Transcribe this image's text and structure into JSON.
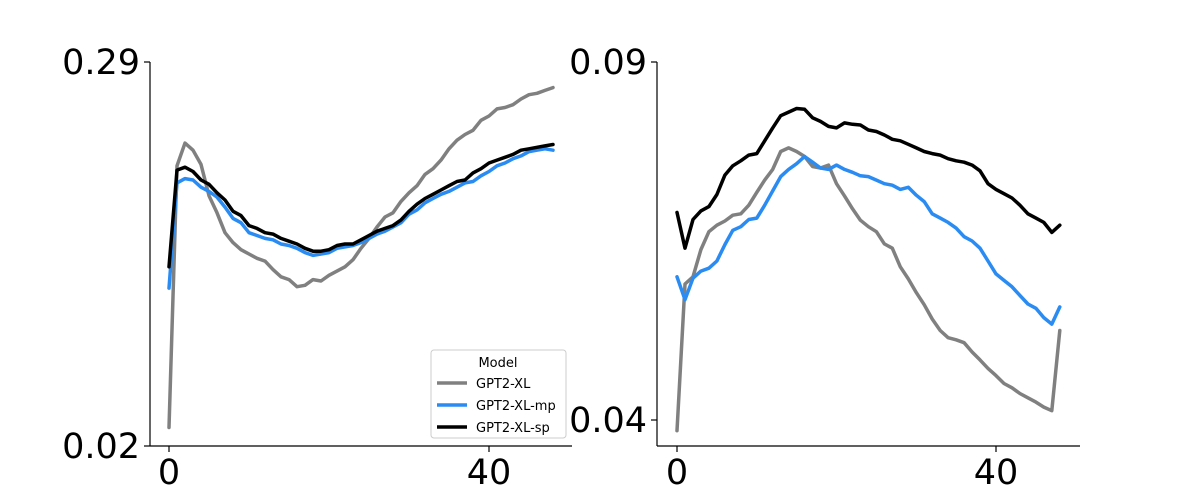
{
  "colors": {
    "GPT2-XL": "#808080",
    "GPT2-XL-mp": "#2a8cf2",
    "GPT2-XL-sp": "#000000"
  },
  "legend": {
    "title": "Model",
    "entries": [
      "GPT2-XL",
      "GPT2-XL-mp",
      "GPT2-XL-sp"
    ],
    "placement": "lower-right of left panel"
  },
  "chart_data": [
    {
      "type": "line",
      "title": "",
      "xlabel": "",
      "ylabel": "",
      "xlim": [
        -1,
        50
      ],
      "ylim": [
        0.02,
        0.29
      ],
      "xticks": [
        0,
        40
      ],
      "yticks": [
        0.29,
        0.02
      ],
      "xtick_labels": [
        "0",
        "40"
      ],
      "ytick_labels": [
        "0.29",
        "0.02"
      ],
      "grid": false,
      "series": [
        {
          "name": "GPT2-XL",
          "x": [
            0,
            1,
            2,
            3,
            4,
            5,
            6,
            7,
            8,
            9,
            10,
            11,
            12,
            13,
            14,
            15,
            16,
            17,
            18,
            19,
            20,
            21,
            22,
            23,
            24,
            25,
            26,
            27,
            28,
            29,
            30,
            31,
            32,
            33,
            34,
            35,
            36,
            37,
            38,
            39,
            40,
            41,
            42,
            43,
            44,
            45,
            46,
            47,
            48
          ],
          "y": [
            0.033,
            0.217,
            0.233,
            0.228,
            0.218,
            0.196,
            0.184,
            0.17,
            0.163,
            0.158,
            0.155,
            0.152,
            0.15,
            0.144,
            0.139,
            0.137,
            0.132,
            0.133,
            0.137,
            0.136,
            0.14,
            0.143,
            0.146,
            0.151,
            0.159,
            0.166,
            0.174,
            0.181,
            0.184,
            0.192,
            0.198,
            0.203,
            0.211,
            0.215,
            0.221,
            0.229,
            0.235,
            0.239,
            0.242,
            0.249,
            0.252,
            0.257,
            0.258,
            0.26,
            0.264,
            0.267,
            0.268,
            0.27,
            0.272
          ]
        },
        {
          "name": "GPT2-XL-mp",
          "x": [
            0,
            1,
            2,
            3,
            4,
            5,
            6,
            7,
            8,
            9,
            10,
            11,
            12,
            13,
            14,
            15,
            16,
            17,
            18,
            19,
            20,
            21,
            22,
            23,
            24,
            25,
            26,
            27,
            28,
            29,
            30,
            31,
            32,
            33,
            34,
            35,
            36,
            37,
            38,
            39,
            40,
            41,
            42,
            43,
            44,
            45,
            46,
            47,
            48
          ],
          "y": [
            0.131,
            0.205,
            0.208,
            0.207,
            0.202,
            0.199,
            0.195,
            0.188,
            0.18,
            0.177,
            0.17,
            0.168,
            0.166,
            0.165,
            0.162,
            0.161,
            0.159,
            0.156,
            0.154,
            0.155,
            0.156,
            0.159,
            0.16,
            0.161,
            0.163,
            0.166,
            0.169,
            0.171,
            0.174,
            0.177,
            0.183,
            0.186,
            0.191,
            0.194,
            0.197,
            0.199,
            0.202,
            0.205,
            0.206,
            0.21,
            0.213,
            0.217,
            0.219,
            0.222,
            0.224,
            0.227,
            0.228,
            0.229,
            0.228
          ]
        },
        {
          "name": "GPT2-XL-sp",
          "x": [
            0,
            1,
            2,
            3,
            4,
            5,
            6,
            7,
            8,
            9,
            10,
            11,
            12,
            13,
            14,
            15,
            16,
            17,
            18,
            19,
            20,
            21,
            22,
            23,
            24,
            25,
            26,
            27,
            28,
            29,
            30,
            31,
            32,
            33,
            34,
            35,
            36,
            37,
            38,
            39,
            40,
            41,
            42,
            43,
            44,
            45,
            46,
            47,
            48
          ],
          "y": [
            0.146,
            0.214,
            0.216,
            0.213,
            0.207,
            0.204,
            0.198,
            0.193,
            0.185,
            0.182,
            0.175,
            0.173,
            0.17,
            0.169,
            0.166,
            0.164,
            0.162,
            0.159,
            0.157,
            0.157,
            0.158,
            0.161,
            0.162,
            0.162,
            0.165,
            0.168,
            0.171,
            0.173,
            0.175,
            0.179,
            0.185,
            0.19,
            0.194,
            0.197,
            0.2,
            0.203,
            0.206,
            0.207,
            0.212,
            0.215,
            0.219,
            0.221,
            0.223,
            0.225,
            0.228,
            0.229,
            0.23,
            0.231,
            0.232
          ]
        }
      ]
    },
    {
      "type": "line",
      "title": "",
      "xlabel": "",
      "ylabel": "",
      "xlim": [
        -1,
        50
      ],
      "ylim": [
        0.0385,
        0.09
      ],
      "xticks": [
        0,
        40
      ],
      "yticks": [
        0.09,
        0.04
      ],
      "xtick_labels": [
        "0",
        "40"
      ],
      "ytick_labels": [
        "0.09",
        "0.04"
      ],
      "grid": false,
      "series": [
        {
          "name": "GPT2-XL",
          "x": [
            0,
            1,
            2,
            3,
            4,
            5,
            6,
            7,
            8,
            9,
            10,
            11,
            12,
            13,
            14,
            15,
            16,
            17,
            18,
            19,
            20,
            21,
            22,
            23,
            24,
            25,
            26,
            27,
            28,
            29,
            30,
            31,
            32,
            33,
            34,
            35,
            36,
            37,
            38,
            39,
            40,
            41,
            42,
            43,
            44,
            45,
            46,
            47,
            48
          ],
          "y": [
            0.0385,
            0.059,
            0.06,
            0.0638,
            0.0663,
            0.0672,
            0.0678,
            0.0686,
            0.0688,
            0.07,
            0.0718,
            0.0735,
            0.075,
            0.0775,
            0.078,
            0.0775,
            0.0768,
            0.0754,
            0.0752,
            0.0756,
            0.073,
            0.0713,
            0.0695,
            0.0679,
            0.067,
            0.0663,
            0.0646,
            0.064,
            0.0614,
            0.0597,
            0.0578,
            0.0561,
            0.0541,
            0.0525,
            0.0515,
            0.0512,
            0.0508,
            0.0495,
            0.0484,
            0.0472,
            0.0462,
            0.0451,
            0.0445,
            0.0437,
            0.0431,
            0.0425,
            0.0418,
            0.0413,
            0.0525
          ]
        },
        {
          "name": "GPT2-XL-mp",
          "x": [
            0,
            1,
            2,
            3,
            4,
            5,
            6,
            7,
            8,
            9,
            10,
            11,
            12,
            13,
            14,
            15,
            16,
            17,
            18,
            19,
            20,
            21,
            22,
            23,
            24,
            25,
            26,
            27,
            28,
            29,
            30,
            31,
            32,
            33,
            34,
            35,
            36,
            37,
            38,
            39,
            40,
            41,
            42,
            43,
            44,
            45,
            46,
            47,
            48
          ],
          "y": [
            0.06,
            0.0568,
            0.0598,
            0.0608,
            0.0612,
            0.0622,
            0.0645,
            0.0665,
            0.067,
            0.068,
            0.0682,
            0.07,
            0.072,
            0.074,
            0.075,
            0.0758,
            0.0768,
            0.076,
            0.0752,
            0.075,
            0.0756,
            0.075,
            0.0746,
            0.0741,
            0.074,
            0.0735,
            0.073,
            0.0728,
            0.0722,
            0.0725,
            0.0714,
            0.0705,
            0.0688,
            0.0682,
            0.0676,
            0.0668,
            0.0656,
            0.065,
            0.064,
            0.0622,
            0.0604,
            0.0595,
            0.0586,
            0.0574,
            0.0562,
            0.0556,
            0.0543,
            0.0534,
            0.0558
          ]
        },
        {
          "name": "GPT2-XL-sp",
          "x": [
            0,
            1,
            2,
            3,
            4,
            5,
            6,
            7,
            8,
            9,
            10,
            11,
            12,
            13,
            14,
            15,
            16,
            17,
            18,
            19,
            20,
            21,
            22,
            23,
            24,
            25,
            26,
            27,
            28,
            29,
            30,
            31,
            32,
            33,
            34,
            35,
            36,
            37,
            38,
            39,
            40,
            41,
            42,
            43,
            44,
            45,
            46,
            47,
            48
          ],
          "y": [
            0.069,
            0.064,
            0.068,
            0.0692,
            0.0698,
            0.0715,
            0.0742,
            0.0755,
            0.0762,
            0.077,
            0.0772,
            0.079,
            0.0808,
            0.0825,
            0.083,
            0.0835,
            0.0834,
            0.0822,
            0.0817,
            0.081,
            0.0808,
            0.0815,
            0.0813,
            0.0812,
            0.0805,
            0.0803,
            0.0798,
            0.0792,
            0.079,
            0.0785,
            0.078,
            0.0775,
            0.0772,
            0.077,
            0.0765,
            0.0762,
            0.076,
            0.0756,
            0.0748,
            0.073,
            0.0722,
            0.0716,
            0.071,
            0.07,
            0.0688,
            0.0682,
            0.0676,
            0.0662,
            0.0672
          ]
        }
      ]
    }
  ]
}
